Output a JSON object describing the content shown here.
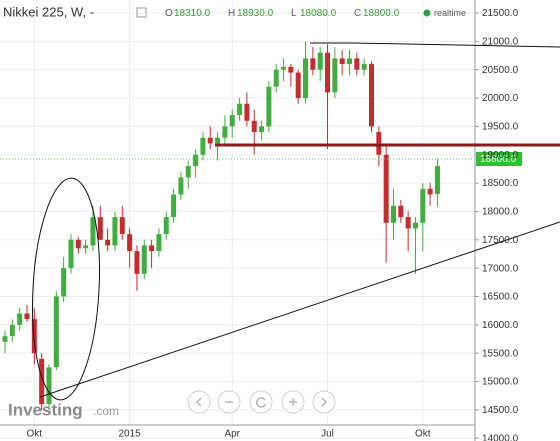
{
  "header": {
    "instrument": "Nikkei 225, W, -",
    "ohlc": [
      {
        "key": "O",
        "value": "18310.0"
      },
      {
        "key": "H",
        "value": "18930.0"
      },
      {
        "key": "L",
        "value": "18080.0"
      },
      {
        "key": "C",
        "value": "18800.0"
      }
    ],
    "status": "realtime"
  },
  "watermark": {
    "brand": "Investing",
    "suffix": ".com"
  },
  "price_marker": "18800.0",
  "chart_data": {
    "type": "candlestick",
    "categories": [
      null,
      null,
      null,
      null,
      "Okt",
      null,
      null,
      null,
      null,
      null,
      null,
      null,
      null,
      null,
      null,
      null,
      null,
      "2015",
      null,
      null,
      null,
      null,
      null,
      null,
      null,
      null,
      null,
      null,
      null,
      null,
      null,
      "Apr",
      null,
      null,
      null,
      null,
      null,
      null,
      null,
      null,
      null,
      null,
      null,
      null,
      "Jul",
      null,
      null,
      null,
      null,
      null,
      null,
      null,
      null,
      null,
      null,
      null,
      null,
      "Okt",
      null,
      null
    ],
    "open": [
      15700,
      15800,
      16000,
      16200,
      16100,
      15400,
      14600,
      15250,
      16500,
      17000,
      17500,
      17350,
      17400,
      17900,
      17500,
      17400,
      17900,
      17600,
      17300,
      16900,
      17400,
      17300,
      17600,
      17900,
      18300,
      18600,
      18800,
      19000,
      19300,
      19200,
      19300,
      19500,
      19700,
      19900,
      19600,
      19400,
      19500,
      20200,
      20500,
      20550,
      20450,
      20000,
      20700,
      20500,
      20800,
      20100,
      20700,
      20600,
      20700,
      20500,
      20600,
      19400,
      19000,
      17800,
      18100,
      17900,
      17700,
      17800,
      18400,
      18310
    ],
    "high": [
      15900,
      16100,
      16300,
      16350,
      16300,
      15500,
      15300,
      16600,
      17200,
      17600,
      17550,
      17500,
      18100,
      18100,
      17700,
      18000,
      18100,
      17700,
      17400,
      17500,
      17500,
      17700,
      18000,
      18400,
      18700,
      18900,
      19100,
      19400,
      19500,
      19400,
      19700,
      19800,
      20000,
      20100,
      19800,
      19600,
      20300,
      20600,
      20700,
      20600,
      20500,
      21000,
      20900,
      20900,
      20950,
      20900,
      20850,
      20850,
      20800,
      20700,
      20650,
      19500,
      19200,
      18400,
      18200,
      18000,
      17900,
      18500,
      18500,
      18930
    ],
    "low": [
      15500,
      15700,
      15900,
      16050,
      15300,
      14500,
      14500,
      15200,
      16400,
      16900,
      17250,
      17250,
      17300,
      17500,
      17300,
      17300,
      17500,
      17000,
      16600,
      16800,
      17000,
      17200,
      17500,
      17800,
      18200,
      18400,
      18600,
      18900,
      19100,
      18900,
      19200,
      19300,
      19600,
      19500,
      19000,
      19250,
      19400,
      20100,
      20300,
      20200,
      19900,
      19900,
      20400,
      20300,
      19100,
      20000,
      20400,
      20400,
      20400,
      20400,
      19400,
      18800,
      17100,
      17500,
      17800,
      17300,
      16900,
      17300,
      18100,
      18080
    ],
    "close": [
      15800,
      16000,
      16200,
      16100,
      15500,
      14600,
      15250,
      16500,
      17000,
      17500,
      17350,
      17400,
      17900,
      17500,
      17400,
      17900,
      17600,
      17300,
      16900,
      17400,
      17300,
      17600,
      17900,
      18300,
      18600,
      18800,
      19000,
      19300,
      19200,
      19300,
      19500,
      19700,
      19900,
      19600,
      19400,
      19500,
      20200,
      20500,
      20550,
      20450,
      20000,
      20700,
      20500,
      20800,
      20100,
      20700,
      20600,
      20700,
      20500,
      20600,
      19500,
      19000,
      17800,
      18100,
      17900,
      17700,
      17800,
      18400,
      18300,
      18800
    ],
    "up_color": "#3fae3f",
    "down_color": "#c62b2f",
    "ylim": [
      13950,
      21730
    ],
    "yticks": [
      {
        "value": 14000,
        "label": "14000.0"
      },
      {
        "value": 14500,
        "label": "14500.0"
      },
      {
        "value": 15000,
        "label": "15000.0"
      },
      {
        "value": 15500,
        "label": "15500.0"
      },
      {
        "value": 16000,
        "label": "16000.0"
      },
      {
        "value": 16500,
        "label": "16500.0"
      },
      {
        "value": 17000,
        "label": "17000.0"
      },
      {
        "value": 17500,
        "label": "17500.0"
      },
      {
        "value": 18000,
        "label": "18000.0"
      },
      {
        "value": 18500,
        "label": "18500.0"
      },
      {
        "value": 19000,
        "label": "19000.0"
      },
      {
        "value": 19500,
        "label": "19500.0"
      },
      {
        "value": 20000,
        "label": "20000.0"
      },
      {
        "value": 20500,
        "label": "20500.0"
      },
      {
        "value": 21000,
        "label": "21000.0"
      },
      {
        "value": 21500,
        "label": "21500.0"
      }
    ],
    "grid": true
  }
}
